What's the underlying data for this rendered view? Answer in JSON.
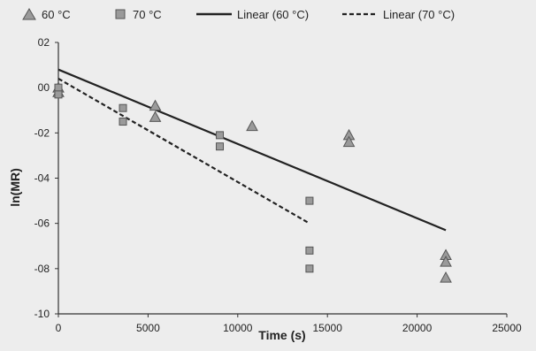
{
  "chart_data": {
    "type": "scatter",
    "xlabel": "Time (s)",
    "ylabel": "ln(MR)",
    "xlim": [
      0,
      25000
    ],
    "ylim": [
      -10,
      2
    ],
    "x_ticks": [
      0,
      5000,
      10000,
      15000,
      20000,
      25000
    ],
    "y_ticks": [
      2,
      0,
      -2,
      -4,
      -6,
      -8,
      -10
    ],
    "x_tick_labels": [
      "0",
      "5000",
      "10000",
      "15000",
      "20000",
      "25000"
    ],
    "y_tick_labels": [
      "02",
      "00",
      "-02",
      "-04",
      "-06",
      "-08",
      "-10"
    ],
    "legend_position": "top",
    "legend": [
      {
        "label": "60 °C",
        "marker": "triangle"
      },
      {
        "label": "70 °C",
        "marker": "square"
      },
      {
        "label": "Linear (60 °C)",
        "marker": "solid-line"
      },
      {
        "label": "Linear (70 °C)",
        "marker": "dashed-line"
      }
    ],
    "series": [
      {
        "name": "60 °C",
        "marker": "triangle",
        "color": "#9a9a9a",
        "points": [
          [
            0,
            0.0
          ],
          [
            0,
            -0.2
          ],
          [
            5400,
            -0.8
          ],
          [
            5400,
            -1.3
          ],
          [
            10800,
            -1.7
          ],
          [
            16200,
            -2.1
          ],
          [
            16200,
            -2.4
          ],
          [
            21600,
            -7.4
          ],
          [
            21600,
            -7.7
          ],
          [
            21600,
            -8.4
          ]
        ]
      },
      {
        "name": "70 °C",
        "marker": "square",
        "color": "#9a9a9a",
        "points": [
          [
            0,
            0.0
          ],
          [
            0,
            -0.3
          ],
          [
            3600,
            -0.9
          ],
          [
            3600,
            -1.5
          ],
          [
            9000,
            -2.1
          ],
          [
            9000,
            -2.6
          ],
          [
            14000,
            -5.0
          ],
          [
            14000,
            -7.2
          ],
          [
            14000,
            -8.0
          ]
        ]
      }
    ],
    "trendlines": [
      {
        "name": "Linear (60 °C)",
        "style": "solid",
        "x": [
          0,
          21600
        ],
        "y": [
          0.8,
          -6.3
        ]
      },
      {
        "name": "Linear (70 °C)",
        "style": "dashed",
        "x": [
          0,
          14000
        ],
        "y": [
          0.4,
          -6.0
        ]
      }
    ]
  }
}
